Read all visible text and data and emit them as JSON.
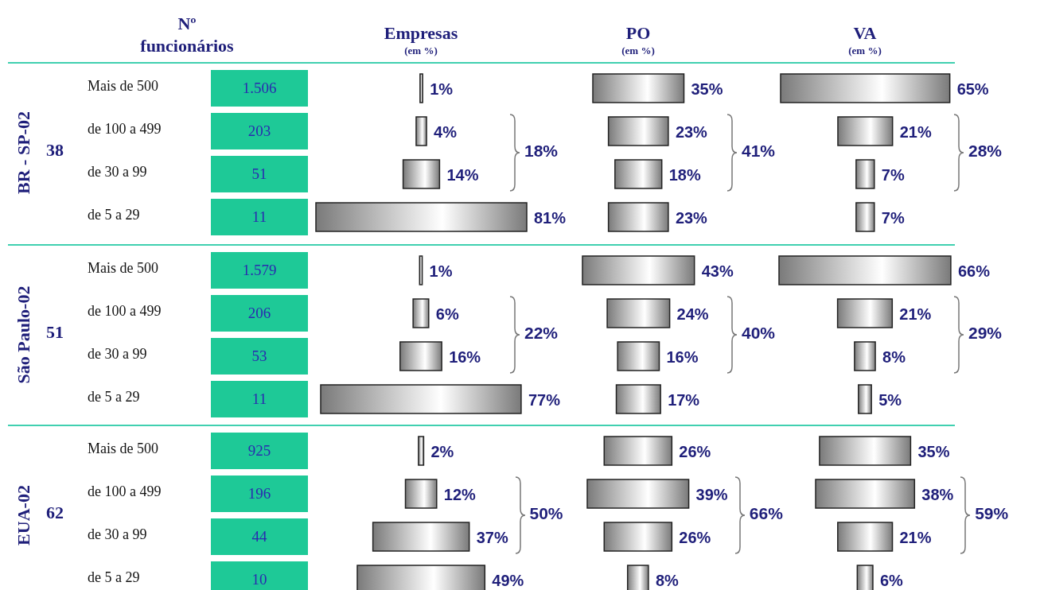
{
  "chart_data": [
    {
      "type": "other",
      "title": "Nº funcionários",
      "ylabel": "BR - SP-02",
      "annotations": [
        "38"
      ],
      "categories": [
        "Mais de 500",
        "de 100 a 499",
        "de 30 a 99",
        "de 5 a 29"
      ],
      "values": [
        1506,
        203,
        51,
        11
      ],
      "value_labels": [
        "1.506",
        "203",
        "51",
        "11"
      ],
      "color": "#1ec997"
    },
    {
      "type": "other",
      "title": "Empresas",
      "subtitle": "(em %)",
      "categories": [
        null,
        null,
        null,
        null
      ],
      "values": [
        1,
        4,
        14,
        81
      ],
      "value_labels": [
        "1%",
        "4%",
        "14%",
        "81%"
      ],
      "annotations": [
        "18%"
      ],
      "color": "#7a7a7a"
    },
    {
      "type": "other",
      "title": "PO",
      "subtitle": "(em %)",
      "categories": [
        null,
        null,
        null,
        null
      ],
      "values": [
        35,
        23,
        18,
        23
      ],
      "value_labels": [
        "35%",
        "23%",
        "18%",
        "23%"
      ],
      "annotations": [
        "41%"
      ],
      "color": "#7a7a7a"
    },
    {
      "type": "other",
      "title": "VA",
      "subtitle": "(em %)",
      "categories": [
        null,
        null,
        null,
        null
      ],
      "values": [
        65,
        21,
        7,
        7
      ],
      "value_labels": [
        "65%",
        "21%",
        "7%",
        "7%"
      ],
      "annotations": [
        "28%"
      ],
      "color": "#7a7a7a"
    },
    {
      "type": "other",
      "ylabel": "São Paulo-02",
      "annotations": [
        "51"
      ],
      "categories": [
        "Mais de 500",
        "de 100 a 499",
        "de 30 a 99",
        "de 5 a 29"
      ],
      "values": [
        1579,
        206,
        53,
        11
      ],
      "value_labels": [
        "1.579",
        "206",
        "53",
        "11"
      ],
      "color": "#1ec997"
    },
    {
      "type": "other",
      "categories": [
        null,
        null,
        null,
        null
      ],
      "values": [
        1,
        6,
        16,
        77
      ],
      "value_labels": [
        "1%",
        "6%",
        "16%",
        "77%"
      ],
      "annotations": [
        "22%"
      ],
      "color": "#7a7a7a"
    },
    {
      "type": "other",
      "categories": [
        null,
        null,
        null,
        null
      ],
      "values": [
        43,
        24,
        16,
        17
      ],
      "value_labels": [
        "43%",
        "24%",
        "16%",
        "17%"
      ],
      "annotations": [
        "40%"
      ],
      "color": "#7a7a7a"
    },
    {
      "type": "other",
      "categories": [
        null,
        null,
        null,
        null
      ],
      "values": [
        66,
        21,
        8,
        5
      ],
      "value_labels": [
        "66%",
        "21%",
        "8%",
        "5%"
      ],
      "annotations": [
        "29%"
      ],
      "color": "#7a7a7a"
    },
    {
      "type": "other",
      "ylabel": "EUA-02",
      "annotations": [
        "62"
      ],
      "categories": [
        "Mais de 500",
        "de 100 a 499",
        "de 30 a 99",
        "de 5 a 29"
      ],
      "values": [
        925,
        196,
        44,
        10
      ],
      "value_labels": [
        "925",
        "196",
        "44",
        "10"
      ],
      "color": "#1ec997"
    },
    {
      "type": "other",
      "categories": [
        null,
        null,
        null,
        null
      ],
      "values": [
        2,
        12,
        37,
        49
      ],
      "value_labels": [
        "2%",
        "12%",
        "37%",
        "49%"
      ],
      "annotations": [
        "50%"
      ],
      "color": "#7a7a7a"
    },
    {
      "type": "other",
      "categories": [
        null,
        null,
        null,
        null
      ],
      "values": [
        26,
        39,
        26,
        8
      ],
      "value_labels": [
        "26%",
        "39%",
        "26%",
        "8%"
      ],
      "annotations": [
        "66%"
      ],
      "color": "#7a7a7a"
    },
    {
      "type": "other",
      "categories": [
        null,
        null,
        null,
        null
      ],
      "values": [
        35,
        38,
        21,
        6
      ],
      "value_labels": [
        "35%",
        "38%",
        "21%",
        "6%"
      ],
      "annotations": [
        "59%"
      ],
      "color": "#7a7a7a"
    }
  ]
}
